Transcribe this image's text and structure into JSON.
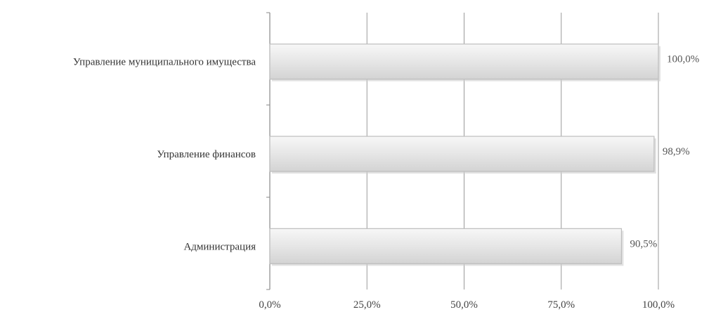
{
  "chart_data": {
    "type": "bar",
    "orientation": "horizontal",
    "categories": [
      "Управление муниципального имущества",
      "Управление финансов",
      "Администрация"
    ],
    "values": [
      100.0,
      98.9,
      90.5
    ],
    "value_labels": [
      "100,0%",
      "98,9%",
      "90,5%"
    ],
    "xlim": [
      0,
      100
    ],
    "x_ticks": [
      0,
      25,
      50,
      75,
      100
    ],
    "x_tick_labels": [
      "0,0%",
      "25,0%",
      "50,0%",
      "75,0%",
      "100,0%"
    ],
    "grid": true,
    "legend": "none",
    "colors": {
      "bar_fill": "#e4e4e4",
      "bar_edge": "#bdbdbd",
      "grid": "#9a9a9a",
      "axis": "#8a8a8a"
    }
  }
}
